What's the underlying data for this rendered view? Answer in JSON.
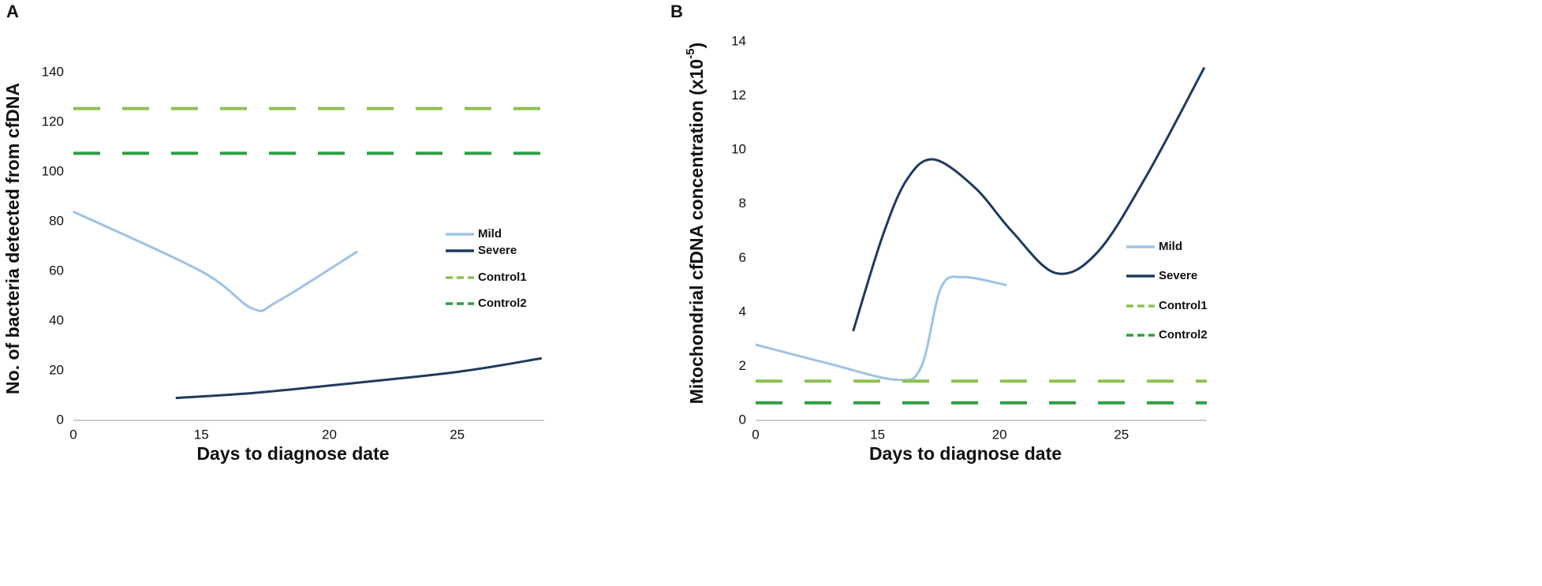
{
  "chart_data": [
    {
      "type": "line",
      "title": "A",
      "x_label": "Days to diagnose date",
      "y_label": "No. of bacteria detected from cfDNA",
      "xlim": [
        10,
        28.4
      ],
      "xticks": [
        {
          "value": 10,
          "label": "0"
        },
        15,
        20,
        25
      ],
      "ylim": [
        0,
        140
      ],
      "yticks": [
        0,
        20,
        40,
        60,
        80,
        100,
        120,
        140
      ],
      "series": [
        {
          "name": "Mild",
          "color": "#9dc3e6",
          "x": [
            10,
            15,
            17,
            18,
            21.1
          ],
          "values": [
            84,
            60,
            45,
            48,
            68
          ]
        },
        {
          "name": "Severe",
          "color": "#1f3a5f",
          "x": [
            14,
            17,
            20,
            25,
            28.3
          ],
          "values": [
            9,
            11,
            14,
            19.5,
            25
          ]
        },
        {
          "name": "Control1",
          "color": "#8cc152",
          "dash": true,
          "values": [
            125.5
          ]
        },
        {
          "name": "Control2",
          "color": "#2e9e44",
          "dash": true,
          "values": [
            107.5
          ]
        }
      ]
    },
    {
      "type": "line",
      "title": "B",
      "x_label": "Days to diagnose date",
      "y_label": "Mitochondrial cfDNA concentration (x10",
      "y_label_sup": "-5",
      "y_label_end": ")",
      "xlim": [
        10,
        28.5
      ],
      "xticks": [
        {
          "value": 10,
          "label": "0"
        },
        15,
        20,
        25
      ],
      "ylim": [
        0,
        14
      ],
      "yticks": [
        0,
        2,
        4,
        6,
        8,
        10,
        12,
        14
      ],
      "series": [
        {
          "name": "Mild",
          "color": "#9dc3e6",
          "x": [
            10,
            13,
            15.8,
            16.8,
            17.6,
            18.5,
            20.3
          ],
          "values": [
            2.8,
            2.1,
            1.5,
            2.0,
            4.9,
            5.3,
            5.0
          ]
        },
        {
          "name": "Severe",
          "color": "#1f3a5f",
          "x": [
            14,
            15.2,
            16.2,
            17.3,
            19,
            20.5,
            22.3,
            24,
            26,
            28.4
          ],
          "values": [
            3.3,
            6.8,
            8.9,
            9.65,
            8.6,
            7.0,
            5.45,
            6.2,
            9.0,
            13.05
          ]
        },
        {
          "name": "Control1",
          "color": "#8cc152",
          "dash": true,
          "values": [
            1.45
          ]
        },
        {
          "name": "Control2",
          "color": "#2e9e44",
          "dash": true,
          "values": [
            0.65
          ]
        }
      ]
    }
  ]
}
